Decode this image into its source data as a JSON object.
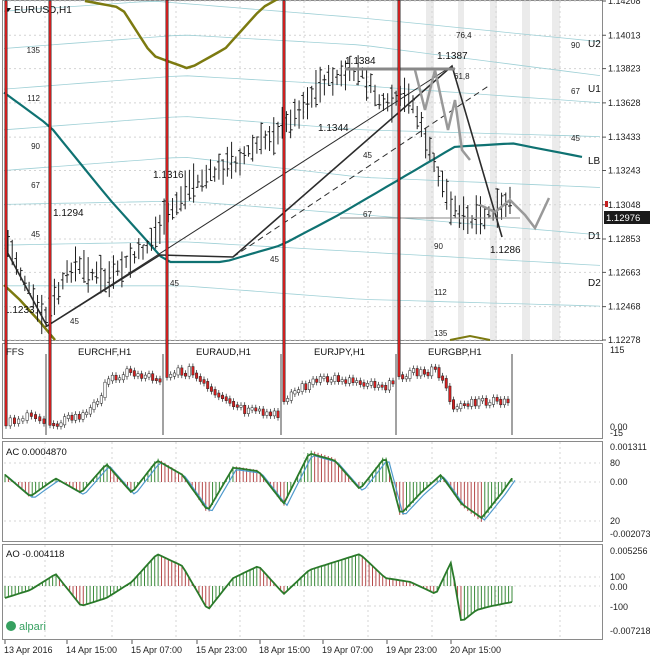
{
  "symbol_title": "EURUSD,H1",
  "main_panel": {
    "price_labels": [
      "1.14208",
      "1.14013",
      "1.13823",
      "1.13628",
      "1.13433",
      "1.13243",
      "1.13048",
      "1.12853",
      "1.12663",
      "1.12468",
      "1.12278"
    ],
    "current_price": "1.12976",
    "right_levels": [
      "U2",
      "U1",
      "LB",
      "D1",
      "D2"
    ],
    "fan_labels_left": [
      "135",
      "112",
      "90",
      "67",
      "45"
    ],
    "fan_labels_right": [
      "90",
      "67",
      "45"
    ],
    "fan_labels_inner": [
      "76,4",
      "61,8",
      "45",
      "67",
      "45",
      "45",
      "90",
      "112",
      "135",
      "45"
    ],
    "annotations": [
      "1.1384",
      "1.1387",
      "1.1344",
      "1.1316",
      "1.1294",
      "1.1233",
      "1.1286"
    ]
  },
  "pairs_panel": {
    "label": "FFS",
    "pairs": [
      "EURCHF,H1",
      "EURAUD,H1",
      "EURJPY,H1",
      "EURGBP,H1"
    ],
    "scale_labels": [
      "115",
      "0.00",
      "-15"
    ]
  },
  "ac_panel": {
    "label": "AC 0.0004870",
    "scale_labels": [
      "0.001311",
      "80",
      "0.00",
      "20",
      "-0.002073"
    ]
  },
  "ao_panel": {
    "label": "AO -0.004118",
    "scale_labels": [
      "0.005256",
      "100",
      "0.00",
      "-100",
      "-0.007218"
    ]
  },
  "time_axis": [
    "13 Apr 2016",
    "14 Apr 15:00",
    "15 Apr 07:00",
    "15 Apr 23:00",
    "18 Apr 15:00",
    "19 Apr 07:00",
    "19 Apr 23:00",
    "20 Apr 15:00"
  ],
  "logo_text": "alpari",
  "colors": {
    "grid": "#d4d4d4",
    "shading": "#ebebeb",
    "price_bar": "#1f1f1f",
    "zigzag": "#2c2c2c",
    "teal_ma": "#0f7272",
    "olive_ma": "#7c7a10",
    "fan_line": "#9fd0d6",
    "bull_candle": "#ffffff",
    "bear_candle": "#d62020",
    "osc_line": "#2a7a2a",
    "osc_signal": "#4f9acd",
    "hist_up": "#3a8a3a",
    "hist_down": "#b54a4a"
  },
  "chart_data": {
    "type": "line",
    "title": "EURUSD,H1",
    "xlabel": "",
    "ylabel": "",
    "x": [
      "13 Apr 2016",
      "14 Apr 15:00",
      "15 Apr 07:00",
      "15 Apr 23:00",
      "18 Apr 15:00",
      "19 Apr 07:00",
      "19 Apr 23:00",
      "20 Apr 15:00"
    ],
    "ylim": [
      1.12278,
      1.14208
    ],
    "series": [
      {
        "values": [
          1.1285,
          1.1252,
          1.1294,
          1.1316,
          1.129,
          1.1344,
          1.1387,
          1.1286
        ]
      }
    ],
    "pivots": [
      1.1233,
      1.1294,
      1.1316,
      1.1344,
      1.1384,
      1.1387,
      1.1286
    ],
    "current": 1.12976
  }
}
